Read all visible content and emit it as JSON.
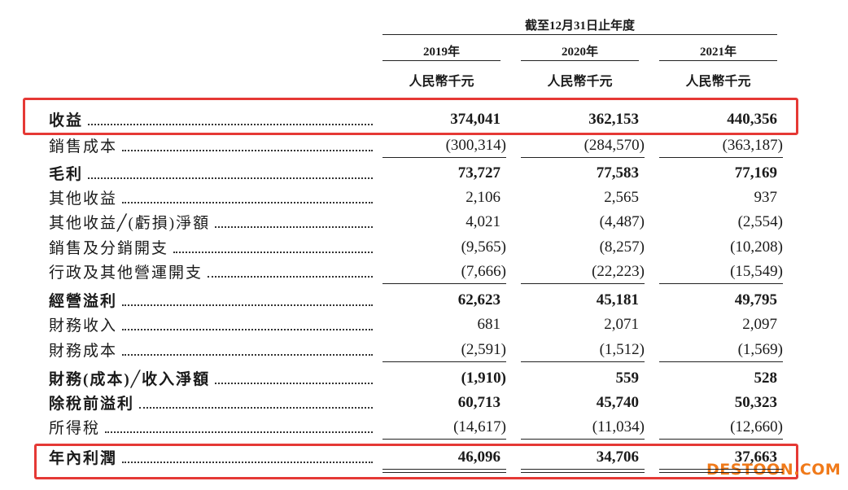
{
  "header": {
    "period": "截至12月31日止年度",
    "years": [
      "2019年",
      "2020年",
      "2021年"
    ],
    "units": [
      "人民幣千元",
      "人民幣千元",
      "人民幣千元"
    ]
  },
  "table": {
    "rows": [
      {
        "label": "收益",
        "values": [
          "374,041",
          "362,153",
          "440,356"
        ],
        "bold": true
      },
      {
        "label": "銷售成本",
        "values": [
          "(300,314)",
          "(284,570)",
          "(363,187)"
        ],
        "bold": false,
        "rule": "single"
      },
      {
        "label": "毛利",
        "values": [
          "73,727",
          "77,583",
          "77,169"
        ],
        "bold": true
      },
      {
        "label": "其他收益",
        "values": [
          "2,106",
          "2,565",
          "937"
        ],
        "bold": false
      },
      {
        "label": "其他收益╱(虧損)淨額",
        "values": [
          "4,021",
          "(4,487)",
          "(2,554)"
        ],
        "bold": false
      },
      {
        "label": "銷售及分銷開支",
        "values": [
          "(9,565)",
          "(8,257)",
          "(10,208)"
        ],
        "bold": false
      },
      {
        "label": "行政及其他營運開支",
        "values": [
          "(7,666)",
          "(22,223)",
          "(15,549)"
        ],
        "bold": false,
        "rule": "single"
      },
      {
        "label": "經營溢利",
        "values": [
          "62,623",
          "45,181",
          "49,795"
        ],
        "bold": true
      },
      {
        "label": "財務收入",
        "values": [
          "681",
          "2,071",
          "2,097"
        ],
        "bold": false
      },
      {
        "label": "財務成本",
        "values": [
          "(2,591)",
          "(1,512)",
          "(1,569)"
        ],
        "bold": false,
        "rule": "single"
      },
      {
        "label": "財務(成本)╱收入淨額",
        "values": [
          "(1,910)",
          "559",
          "528"
        ],
        "bold": true
      },
      {
        "label": "除稅前溢利",
        "values": [
          "60,713",
          "45,740",
          "50,323"
        ],
        "bold": true
      },
      {
        "label": "所得稅",
        "values": [
          "(14,617)",
          "(11,034)",
          "(12,660)"
        ],
        "bold": false,
        "rule": "single"
      },
      {
        "label": "年內利潤",
        "values": [
          "46,096",
          "34,706",
          "37,663"
        ],
        "bold": true,
        "rule": "double"
      }
    ]
  },
  "watermark": "DESTOON.COM"
}
